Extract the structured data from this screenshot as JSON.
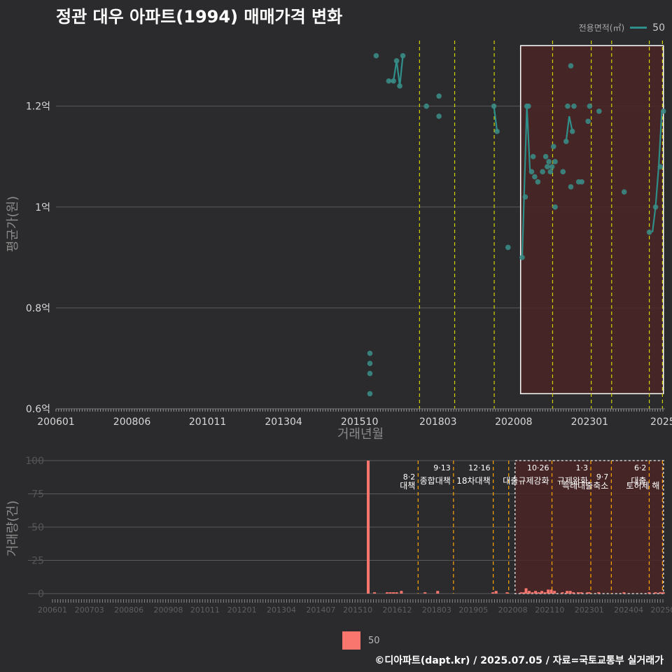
{
  "title": "정관 대우 아파트(1994) 매매가격 변화",
  "credit": "©디아파트(dapt.kr) / 2025.07.05 / 자료=국토교통부 실거래가",
  "legend_top": {
    "title": "전용면적(㎡)",
    "entry": "50"
  },
  "legend_bottom": {
    "entry": "50"
  },
  "colors": {
    "background": "#2b2b2d",
    "line": "#2f8f8a",
    "point": "#3a8a85",
    "bar": "#f8766d",
    "highlight_fill": "#4a2424",
    "policy_yellow": "#d4d400",
    "policy_orange": "#ffa500"
  },
  "chart_data": [
    {
      "type": "line",
      "title": "정관 대우 아파트(1994) 매매가격 변화",
      "xlabel": "거래년월",
      "ylabel": "평균가(원)",
      "xlim": [
        2006.0,
        2025.4
      ],
      "ylim": [
        0.6,
        1.33
      ],
      "y_ticks": [
        {
          "v": 0.6,
          "label": "0.6억"
        },
        {
          "v": 0.8,
          "label": "0.8억"
        },
        {
          "v": 1.0,
          "label": "1억"
        },
        {
          "v": 1.2,
          "label": "1.2억"
        }
      ],
      "x_ticks": [
        {
          "v": 2006.0,
          "label": "200601"
        },
        {
          "v": 2008.42,
          "label": "200806"
        },
        {
          "v": 2010.83,
          "label": "201011"
        },
        {
          "v": 2013.25,
          "label": "201304"
        },
        {
          "v": 2015.67,
          "label": "201510"
        },
        {
          "v": 2018.17,
          "label": "201803"
        },
        {
          "v": 2020.58,
          "label": "202008"
        },
        {
          "v": 2023.0,
          "label": "202301"
        },
        {
          "v": 2025.33,
          "label": "2025"
        }
      ],
      "series_name": "50",
      "line_series": [
        [
          [
            2016.6,
            1.25
          ],
          [
            2016.75,
            1.25
          ],
          [
            2016.85,
            1.29
          ],
          [
            2016.95,
            1.24
          ],
          [
            2017.05,
            1.3
          ]
        ],
        [
          [
            2019.95,
            1.2
          ],
          [
            2020.05,
            1.15
          ]
        ],
        [
          [
            2020.85,
            0.9
          ],
          [
            2021.0,
            1.2
          ],
          [
            2021.1,
            1.07
          ]
        ],
        [
          [
            2022.25,
            1.13
          ],
          [
            2022.35,
            1.18
          ],
          [
            2022.45,
            1.15
          ]
        ],
        [
          [
            2025.0,
            0.95
          ],
          [
            2025.1,
            1.0
          ],
          [
            2025.2,
            1.08
          ],
          [
            2025.3,
            1.19
          ]
        ]
      ],
      "points": [
        [
          2016.0,
          0.63
        ],
        [
          2016.0,
          0.67
        ],
        [
          2016.0,
          0.69
        ],
        [
          2016.0,
          0.71
        ],
        [
          2016.2,
          1.3
        ],
        [
          2016.6,
          1.25
        ],
        [
          2016.75,
          1.25
        ],
        [
          2016.85,
          1.29
        ],
        [
          2016.95,
          1.24
        ],
        [
          2017.05,
          1.3
        ],
        [
          2017.8,
          1.2
        ],
        [
          2018.2,
          1.22
        ],
        [
          2018.2,
          1.18
        ],
        [
          2019.95,
          1.2
        ],
        [
          2020.05,
          1.15
        ],
        [
          2020.4,
          0.92
        ],
        [
          2020.85,
          0.9
        ],
        [
          2020.95,
          1.02
        ],
        [
          2021.0,
          1.2
        ],
        [
          2021.05,
          1.2
        ],
        [
          2021.15,
          1.07
        ],
        [
          2021.2,
          1.1
        ],
        [
          2021.25,
          1.06
        ],
        [
          2021.35,
          1.05
        ],
        [
          2021.5,
          1.07
        ],
        [
          2021.6,
          1.1
        ],
        [
          2021.65,
          1.08
        ],
        [
          2021.7,
          1.09
        ],
        [
          2021.75,
          1.07
        ],
        [
          2021.8,
          1.08
        ],
        [
          2021.85,
          1.12
        ],
        [
          2021.9,
          1.09
        ],
        [
          2021.9,
          1.0
        ],
        [
          2022.15,
          1.07
        ],
        [
          2022.3,
          1.2
        ],
        [
          2022.25,
          1.13
        ],
        [
          2022.4,
          1.04
        ],
        [
          2022.4,
          1.28
        ],
        [
          2022.45,
          1.15
        ],
        [
          2022.5,
          1.2
        ],
        [
          2022.65,
          1.05
        ],
        [
          2022.75,
          1.05
        ],
        [
          2022.95,
          1.17
        ],
        [
          2023.0,
          1.2
        ],
        [
          2023.3,
          1.19
        ],
        [
          2024.1,
          1.03
        ],
        [
          2024.9,
          0.95
        ],
        [
          2025.1,
          1.0
        ],
        [
          2025.25,
          1.08
        ],
        [
          2025.35,
          1.19
        ]
      ],
      "highlight": {
        "x": [
          2020.8,
          2025.35
        ],
        "y": [
          0.63,
          1.32
        ]
      },
      "policy_lines": [
        {
          "x": 2017.58,
          "color": "yellow"
        },
        {
          "x": 2018.7,
          "color": "yellow"
        },
        {
          "x": 2019.96,
          "color": "yellow"
        },
        {
          "x": 2021.82,
          "color": "yellow"
        },
        {
          "x": 2023.05,
          "color": "yellow"
        },
        {
          "x": 2023.7,
          "color": "yellow"
        },
        {
          "x": 2024.9,
          "color": "yellow"
        },
        {
          "x": 2025.32,
          "color": "yellow"
        }
      ]
    },
    {
      "type": "bar",
      "ylabel": "거래량(건)",
      "xlim": [
        2006.0,
        2025.4
      ],
      "ylim": [
        0,
        100
      ],
      "y_ticks": [
        0,
        25,
        50,
        75,
        100
      ],
      "x_ticks": [
        {
          "v": 2006.0,
          "label": "200601"
        },
        {
          "v": 2007.17,
          "label": "200703"
        },
        {
          "v": 2008.42,
          "label": "200806"
        },
        {
          "v": 2009.67,
          "label": "200908"
        },
        {
          "v": 2010.83,
          "label": "201011"
        },
        {
          "v": 2012.0,
          "label": "201201"
        },
        {
          "v": 2013.25,
          "label": "201304"
        },
        {
          "v": 2014.5,
          "label": "201407"
        },
        {
          "v": 2015.67,
          "label": "201510"
        },
        {
          "v": 2016.92,
          "label": "201612"
        },
        {
          "v": 2018.17,
          "label": "201803"
        },
        {
          "v": 2019.33,
          "label": "201905"
        },
        {
          "v": 2020.58,
          "label": "202008"
        },
        {
          "v": 2021.75,
          "label": "202110"
        },
        {
          "v": 2023.0,
          "label": "202301"
        },
        {
          "v": 2024.25,
          "label": "202404"
        },
        {
          "v": 2025.33,
          "label": "20250"
        }
      ],
      "bars": [
        [
          2016.0,
          100
        ],
        [
          2016.2,
          1
        ],
        [
          2016.6,
          1
        ],
        [
          2016.7,
          1
        ],
        [
          2016.8,
          1
        ],
        [
          2016.9,
          1
        ],
        [
          2017.05,
          2
        ],
        [
          2017.8,
          1
        ],
        [
          2018.2,
          2
        ],
        [
          2019.95,
          1
        ],
        [
          2020.05,
          2
        ],
        [
          2020.4,
          1
        ],
        [
          2020.85,
          1
        ],
        [
          2020.95,
          1
        ],
        [
          2021.0,
          4
        ],
        [
          2021.1,
          2
        ],
        [
          2021.2,
          1
        ],
        [
          2021.3,
          2
        ],
        [
          2021.4,
          1
        ],
        [
          2021.5,
          2
        ],
        [
          2021.6,
          1
        ],
        [
          2021.7,
          3
        ],
        [
          2021.8,
          3
        ],
        [
          2021.9,
          2
        ],
        [
          2022.15,
          1
        ],
        [
          2022.3,
          2
        ],
        [
          2022.4,
          2
        ],
        [
          2022.5,
          1
        ],
        [
          2022.65,
          1
        ],
        [
          2022.75,
          1
        ],
        [
          2022.95,
          1
        ],
        [
          2023.0,
          1
        ],
        [
          2023.3,
          1
        ],
        [
          2024.1,
          1
        ],
        [
          2024.9,
          1
        ],
        [
          2025.1,
          1
        ],
        [
          2025.25,
          1
        ],
        [
          2025.35,
          1
        ]
      ],
      "highlight": {
        "x": [
          2020.65,
          2025.35
        ],
        "y": [
          0,
          100
        ]
      },
      "policy_lines": [
        {
          "x": 2017.58,
          "date": "8·2",
          "name": "대책",
          "level": 1
        },
        {
          "x": 2018.7,
          "date": "9·13",
          "name": "종합대책",
          "level": 0
        },
        {
          "x": 2019.96,
          "date": "12·16",
          "name": "18차대책",
          "level": 0
        },
        {
          "x": 2020.45,
          "date": "",
          "name": "",
          "level": 0
        },
        {
          "x": 2021.82,
          "date": "10·26",
          "name": "대출규제강화",
          "level": 0
        },
        {
          "x": 2023.05,
          "date": "1·3",
          "name": "규제완화",
          "level": 0
        },
        {
          "x": 2023.7,
          "date": "9·7",
          "name": "특례대출축소",
          "level": 1
        },
        {
          "x": 2024.9,
          "date": "6·2",
          "name": "대출",
          "level": 0
        },
        {
          "x": 2025.32,
          "date": "",
          "name": "토허제 해",
          "level": 1
        }
      ]
    }
  ]
}
